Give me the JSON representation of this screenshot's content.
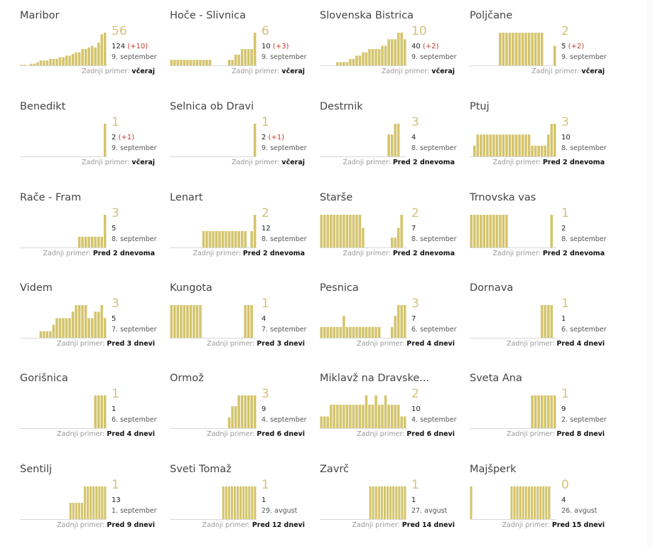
{
  "footer_label": "Zadnji primer:",
  "colors": {
    "bar": "#d4c46c",
    "big_number": "#d3c27a",
    "delta": "#c0392b",
    "baseline": "#d8d8d8"
  },
  "municipalities": [
    {
      "name": "Maribor",
      "active": "56",
      "total": "124",
      "delta": "(+10)",
      "date": "9. september",
      "last": "včeraj",
      "series": [
        0.02,
        0.02,
        0,
        0.05,
        0.05,
        0.1,
        0.15,
        0.15,
        0.15,
        0.2,
        0.2,
        0.2,
        0.25,
        0.25,
        0.3,
        0.3,
        0.35,
        0.4,
        0.4,
        0.5,
        0.5,
        0.55,
        0.6,
        0.55,
        0.7,
        0.95,
        1
      ]
    },
    {
      "name": "Hoče - Slivnica",
      "active": "6",
      "total": "10",
      "delta": "(+3)",
      "date": "9. september",
      "last": "včeraj",
      "series": [
        0.17,
        0.17,
        0.17,
        0.17,
        0.17,
        0.17,
        0.17,
        0.17,
        0.17,
        0.17,
        0.17,
        0.17,
        0.17,
        0,
        0,
        0,
        0,
        0,
        0.17,
        0.17,
        0.33,
        0.33,
        0.5,
        0.5,
        0.5,
        0.5,
        1
      ]
    },
    {
      "name": "Slovenska Bistrica",
      "active": "10",
      "total": "40",
      "delta": "(+2)",
      "date": "9. september",
      "last": "včeraj",
      "series": [
        0,
        0,
        0,
        0,
        0,
        0.1,
        0.1,
        0.1,
        0.1,
        0.2,
        0.2,
        0.3,
        0.3,
        0.4,
        0.4,
        0.5,
        0.5,
        0.5,
        0.5,
        0.6,
        0.6,
        0.8,
        0.8,
        0.8,
        1,
        1,
        0.8
      ]
    },
    {
      "name": "Poljčane",
      "active": "2",
      "total": "5",
      "delta": "(+2)",
      "date": "9. september",
      "last": "včeraj",
      "series": [
        0,
        0,
        0,
        0,
        0,
        0,
        0,
        0,
        0,
        1,
        1,
        1,
        1,
        1,
        1,
        1,
        1,
        1,
        1,
        1,
        1,
        1,
        1,
        0,
        0,
        0,
        0.6
      ]
    },
    {
      "name": "Benedikt",
      "active": "1",
      "total": "2",
      "delta": "(+1)",
      "date": "9. september",
      "last": "včeraj",
      "series": [
        0,
        0,
        0,
        0,
        0,
        0,
        0,
        0,
        0,
        0,
        0,
        0,
        0,
        0,
        0,
        0,
        0,
        0,
        0,
        0,
        0,
        0,
        0,
        0,
        0,
        0,
        1
      ]
    },
    {
      "name": "Selnica ob Dravi",
      "active": "1",
      "total": "2",
      "delta": "(+1)",
      "date": "9. september",
      "last": "včeraj",
      "series": [
        0,
        0,
        0,
        0,
        0,
        0,
        0,
        0,
        0,
        0,
        0,
        0,
        0,
        0,
        0,
        0,
        0,
        0,
        0,
        0,
        0,
        0,
        0,
        0,
        0,
        0,
        1
      ]
    },
    {
      "name": "Destrnik",
      "active": "3",
      "total": "4",
      "delta": "",
      "date": "8. september",
      "last": "Pred 2 dnevoma",
      "series": [
        0,
        0,
        0,
        0,
        0,
        0,
        0,
        0,
        0,
        0,
        0,
        0,
        0,
        0,
        0,
        0,
        0,
        0,
        0,
        0,
        0,
        0.67,
        0.67,
        1,
        1,
        0,
        0
      ]
    },
    {
      "name": "Ptuj",
      "active": "3",
      "total": "10",
      "delta": "",
      "date": "8. september",
      "last": "Pred 2 dnevoma",
      "series": [
        0,
        0.33,
        0.67,
        0.67,
        0.67,
        0.67,
        0.67,
        0.67,
        0.67,
        0.67,
        0.67,
        0.67,
        0.67,
        0.67,
        0.67,
        0.67,
        0.67,
        0.67,
        0.67,
        0.33,
        0.33,
        0.33,
        0.33,
        0.33,
        0.67,
        1,
        1
      ]
    },
    {
      "name": "Rače - Fram",
      "active": "3",
      "total": "5",
      "delta": "",
      "date": "8. september",
      "last": "Pred 2 dnevoma",
      "series": [
        0,
        0,
        0,
        0,
        0,
        0,
        0,
        0,
        0,
        0,
        0,
        0,
        0,
        0,
        0,
        0,
        0,
        0,
        0.33,
        0.33,
        0.33,
        0.33,
        0.33,
        0.33,
        0.33,
        0.33,
        1
      ]
    },
    {
      "name": "Lenart",
      "active": "2",
      "total": "12",
      "delta": "",
      "date": "8. september",
      "last": "Pred 2 dnevoma",
      "series": [
        0,
        0,
        0,
        0,
        0,
        0,
        0,
        0,
        0,
        0,
        0.5,
        0.5,
        0.5,
        0.5,
        0.5,
        0.5,
        0.5,
        0.5,
        0.5,
        0.5,
        0.5,
        0.5,
        0.5,
        0.5,
        0,
        0.5,
        1
      ]
    },
    {
      "name": "Starše",
      "active": "2",
      "total": "7",
      "delta": "",
      "date": "8. september",
      "last": "Pred 2 dnevoma",
      "series": [
        1,
        1,
        1,
        1,
        1,
        1,
        1,
        1,
        1,
        1,
        1,
        1,
        1,
        0.6,
        0,
        0,
        0,
        0,
        0,
        0,
        0,
        0,
        0.3,
        0.3,
        0.6,
        1,
        0
      ]
    },
    {
      "name": "Trnovska vas",
      "active": "1",
      "total": "2",
      "delta": "",
      "date": "8. september",
      "last": "Pred 2 dnevoma",
      "series": [
        1,
        1,
        1,
        1,
        1,
        1,
        1,
        1,
        1,
        1,
        1,
        1,
        0,
        0,
        0,
        0,
        0,
        0,
        0,
        0,
        0,
        0,
        0,
        0,
        0,
        1,
        0
      ]
    },
    {
      "name": "Videm",
      "active": "3",
      "total": "5",
      "delta": "",
      "date": "7. september",
      "last": "Pred 3 dnevi",
      "series": [
        0,
        0,
        0,
        0,
        0,
        0,
        0.2,
        0.2,
        0.2,
        0.2,
        0.4,
        0.6,
        0.6,
        0.6,
        0.6,
        0.6,
        0.8,
        1,
        1,
        1,
        1,
        0.6,
        0.6,
        0.8,
        0.8,
        1,
        0.6
      ]
    },
    {
      "name": "Kungota",
      "active": "1",
      "total": "4",
      "delta": "",
      "date": "7. september",
      "last": "Pred 3 dnevi",
      "series": [
        1,
        1,
        1,
        1,
        1,
        1,
        1,
        1,
        1,
        1,
        0,
        0,
        0,
        0,
        0,
        0,
        0,
        0,
        0,
        0,
        0,
        0,
        0,
        1,
        1,
        1,
        0
      ]
    },
    {
      "name": "Pesnica",
      "active": "3",
      "total": "7",
      "delta": "",
      "date": "6. september",
      "last": "Pred 4 dnevi",
      "series": [
        0.33,
        0.33,
        0.33,
        0.33,
        0.33,
        0.33,
        0.33,
        0.67,
        0.33,
        0.33,
        0.33,
        0.33,
        0.33,
        0.33,
        0.33,
        0.33,
        0.33,
        0.33,
        0.33,
        0,
        0,
        0,
        0.33,
        0.67,
        1,
        1,
        1
      ]
    },
    {
      "name": "Dornava",
      "active": "1",
      "total": "1",
      "delta": "",
      "date": "6. september",
      "last": "Pred 4 dnevi",
      "series": [
        0,
        0,
        0,
        0,
        0,
        0,
        0,
        0,
        0,
        0,
        0,
        0,
        0,
        0,
        0,
        0,
        0,
        0,
        0,
        0,
        0,
        0,
        1,
        1,
        1,
        1,
        0
      ]
    },
    {
      "name": "Gorišnica",
      "active": "1",
      "total": "1",
      "delta": "",
      "date": "6. september",
      "last": "Pred 4 dnevi",
      "series": [
        0,
        0,
        0,
        0,
        0,
        0,
        0,
        0,
        0,
        0,
        0,
        0,
        0,
        0,
        0,
        0,
        0,
        0,
        0,
        0,
        0,
        0,
        0,
        1,
        1,
        1,
        1
      ]
    },
    {
      "name": "Ormož",
      "active": "3",
      "total": "9",
      "delta": "",
      "date": "4. september",
      "last": "Pred 6 dnevi",
      "series": [
        0,
        0,
        0,
        0,
        0,
        0,
        0,
        0,
        0,
        0,
        0,
        0,
        0,
        0,
        0,
        0,
        0,
        0,
        0.33,
        0.67,
        0.67,
        1,
        1,
        1,
        1,
        1,
        1
      ]
    },
    {
      "name": "Miklavž na Dravske...",
      "active": "2",
      "total": "10",
      "delta": "",
      "date": "4. september",
      "last": "Pred 6 dnevi",
      "series": [
        0.5,
        0.5,
        0.5,
        1,
        1,
        1,
        1,
        1,
        1,
        1,
        1,
        1,
        1,
        1,
        1.4,
        1,
        1,
        1.4,
        1,
        1,
        1.4,
        1,
        1,
        1,
        1,
        0.5,
        0.5
      ]
    },
    {
      "name": "Sveta Ana",
      "active": "1",
      "total": "9",
      "delta": "",
      "date": "2. september",
      "last": "Pred 8 dnevi",
      "series": [
        0,
        0,
        0,
        0,
        0,
        0,
        0,
        0,
        0,
        0,
        0,
        0,
        0,
        0,
        0,
        0,
        0,
        0,
        0,
        1,
        1,
        1,
        1,
        1,
        1,
        1,
        1
      ]
    },
    {
      "name": "Šentilj",
      "active": "1",
      "total": "13",
      "delta": "",
      "date": "1. september",
      "last": "Pred 9 dnevi",
      "series": [
        0,
        0,
        0,
        0,
        0,
        0,
        0,
        0,
        0,
        0,
        0,
        0,
        0,
        0,
        0,
        0,
        0,
        0.5,
        0.5,
        0.5,
        0.5,
        0.5,
        1,
        1,
        1,
        1,
        1,
        1,
        1,
        1
      ]
    },
    {
      "name": "Sveti Tomaž",
      "active": "1",
      "total": "1",
      "delta": "",
      "date": "29. avgust",
      "last": "Pred 12 dnevi",
      "series": [
        0,
        0,
        0,
        0,
        0,
        0,
        0,
        0,
        0,
        0,
        0,
        0,
        0,
        0,
        0,
        0,
        0,
        0,
        1,
        1,
        1,
        1,
        1,
        1,
        1,
        1,
        1,
        1,
        1,
        1
      ]
    },
    {
      "name": "Zavrč",
      "active": "1",
      "total": "1",
      "delta": "",
      "date": "27. avgust",
      "last": "Pred 14 dnevi",
      "series": [
        0,
        0,
        0,
        0,
        0,
        0,
        0,
        0,
        0,
        0,
        0,
        0,
        0,
        0,
        0,
        0,
        0,
        1,
        1,
        1,
        1,
        1,
        1,
        1,
        1,
        1,
        1,
        1,
        1,
        1
      ]
    },
    {
      "name": "Majšperk",
      "active": "0",
      "total": "4",
      "delta": "",
      "date": "26. avgust",
      "last": "Pred 15 dnevi",
      "series": [
        1,
        0,
        0,
        0,
        0,
        0,
        0,
        0,
        0,
        0,
        0,
        0,
        0,
        0,
        1,
        1,
        1,
        1,
        1,
        1,
        1,
        1,
        1,
        1,
        1,
        1,
        1,
        1,
        0,
        0
      ]
    }
  ]
}
